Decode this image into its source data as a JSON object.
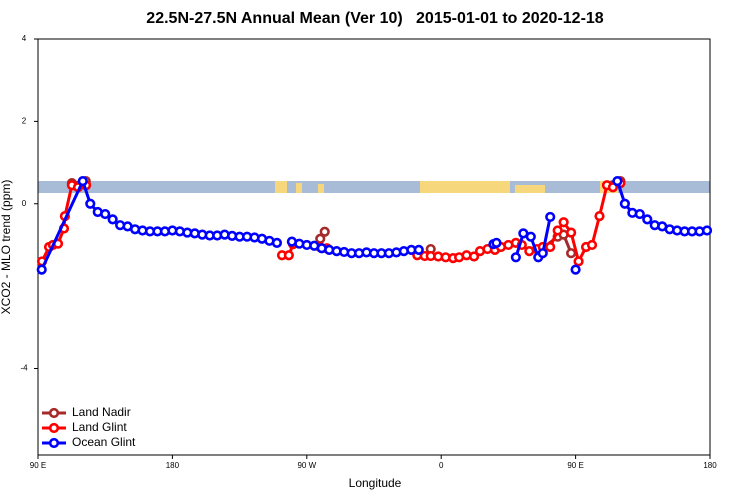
{
  "chart_data": {
    "type": "line",
    "title": "22.5N-27.5N Annual Mean (Ver 10)   2015-01-01 to 2020-12-18",
    "x_label": "Longitude",
    "y_label": "XCO2 - MLO trend (ppm)",
    "xlim": [
      90,
      540
    ],
    "ylim": [
      -6.1,
      4
    ],
    "xticks": [
      {
        "value": 90,
        "label": "90 E"
      },
      180,
      {
        "value": 270,
        "label": "90 W"
      },
      {
        "value": 360,
        "label": "0"
      },
      {
        "value": 450,
        "label": "90 E"
      },
      {
        "value": 540,
        "label": "180"
      }
    ],
    "yticks": [
      -4,
      0,
      2,
      4
    ],
    "legend": "bottom-left",
    "series": [
      {
        "name": "Land Nadir",
        "color": "#a52a2a",
        "x": [
          112.7,
          122,
          200,
          279,
          282,
          300,
          353,
          400,
          427,
          438,
          442,
          447,
          460,
          475,
          480
        ],
        "values": [
          0.5,
          0.55,
          null,
          -0.85,
          -0.68,
          null,
          -1.1,
          null,
          -1.1,
          -0.8,
          -0.75,
          -1.2,
          null,
          0.45,
          0.55
        ]
      },
      {
        "name": "Land Glint",
        "color": "#ff0000",
        "x": [
          92.7,
          97.4,
          100,
          103.4,
          107.4,
          108,
          112.7,
          116.8,
          122.2,
          200,
          253.4,
          258,
          260.8,
          270,
          278.8,
          283.5,
          300,
          344,
          349,
          353,
          358,
          363,
          368,
          372,
          377,
          382,
          386,
          391,
          396,
          400,
          405,
          410,
          414,
          419,
          424,
          428,
          433,
          438,
          442,
          447,
          452,
          457,
          461,
          466,
          471,
          475,
          480
        ],
        "values": [
          -1.4,
          -1.05,
          -1.0,
          -0.97,
          -0.6,
          -0.3,
          0.45,
          0.4,
          0.45,
          null,
          -1.25,
          -1.25,
          -0.98,
          null,
          -1.05,
          -1.08,
          null,
          -1.25,
          -1.27,
          -1.27,
          -1.28,
          -1.3,
          -1.32,
          -1.3,
          -1.25,
          -1.28,
          -1.15,
          -1.1,
          -1.12,
          -1.05,
          -1.0,
          -0.95,
          -1.0,
          -1.15,
          -1.1,
          -1.05,
          -1.05,
          -0.65,
          -0.45,
          -0.7,
          -1.4,
          -1.05,
          -1.0,
          -0.3,
          0.45,
          0.4,
          0.5
        ]
      },
      {
        "name": "Ocean Glint",
        "color": "#0000ff",
        "x": [
          92.5,
          120,
          125,
          130,
          135,
          140,
          145,
          150,
          155,
          160,
          165,
          170,
          175,
          180,
          185,
          190,
          195,
          200,
          205,
          210,
          215,
          220,
          225,
          230,
          235,
          240,
          245,
          250,
          255,
          260,
          265,
          270,
          275,
          280,
          285,
          290,
          295,
          300,
          305,
          310,
          315,
          320,
          325,
          330,
          335,
          340,
          345,
          370,
          395,
          397,
          405,
          410,
          415,
          420,
          425,
          428,
          433,
          440,
          450,
          465,
          478,
          483,
          488,
          493,
          498,
          503,
          508,
          513,
          518,
          523,
          528,
          533,
          538
        ],
        "values": [
          -1.6,
          0.55,
          0.0,
          -0.2,
          -0.25,
          -0.38,
          -0.52,
          -0.55,
          -0.62,
          -0.65,
          -0.67,
          -0.67,
          -0.67,
          -0.65,
          -0.67,
          -0.7,
          -0.72,
          -0.75,
          -0.77,
          -0.77,
          -0.75,
          -0.78,
          -0.8,
          -0.8,
          -0.82,
          -0.85,
          -0.9,
          -0.95,
          null,
          -0.92,
          -0.97,
          -1.0,
          -1.02,
          -1.08,
          -1.12,
          -1.15,
          -1.17,
          -1.2,
          -1.2,
          -1.18,
          -1.2,
          -1.2,
          -1.2,
          -1.18,
          -1.15,
          -1.12,
          -1.12,
          null,
          -0.98,
          -0.95,
          null,
          -1.3,
          -0.72,
          -0.8,
          -1.3,
          -1.2,
          -0.32,
          null,
          -1.6,
          null,
          0.55,
          0.0,
          -0.22,
          -0.25,
          -0.38,
          -0.52,
          -0.55,
          -0.62,
          -0.65,
          -0.67,
          -0.67,
          -0.67,
          -0.65
        ]
      }
    ]
  }
}
